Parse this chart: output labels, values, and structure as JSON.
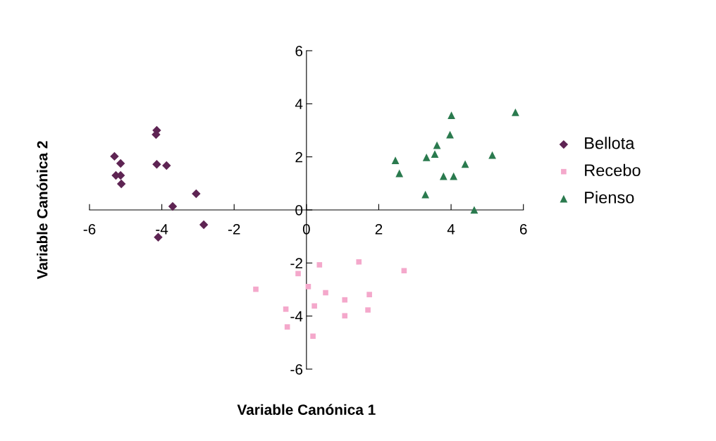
{
  "chart_data": {
    "type": "scatter",
    "xlabel": "Variable Canónica 1",
    "ylabel": "Variable Canónica 2",
    "xlim": [
      -6,
      6
    ],
    "ylim": [
      -6,
      6
    ],
    "xticks": [
      -6,
      -4,
      -2,
      0,
      2,
      4,
      6
    ],
    "yticks": [
      -6,
      -4,
      -2,
      0,
      2,
      4,
      6
    ],
    "grid": false,
    "legend": "right",
    "series": [
      {
        "name": "Bellota",
        "color": "#5e2453",
        "marker": "diamond",
        "x": [
          -5.31,
          -5.14,
          -5.27,
          -5.14,
          -5.12,
          -4.14,
          -4.16,
          -4.14,
          -3.87,
          -3.7,
          -3.05,
          -2.84,
          -4.1
        ],
        "values": [
          2.02,
          1.75,
          1.3,
          1.3,
          0.98,
          3.0,
          2.84,
          1.72,
          1.67,
          0.13,
          0.61,
          -0.56,
          -1.03
        ]
      },
      {
        "name": "Recebo",
        "color": "#f4a8cb",
        "marker": "square",
        "x": [
          0.36,
          1.45,
          2.7,
          -0.23,
          -1.4,
          0.05,
          0.53,
          1.74,
          1.06,
          0.22,
          -0.57,
          1.7,
          1.06,
          -0.53,
          0.18
        ],
        "values": [
          -2.07,
          -1.96,
          -2.29,
          -2.4,
          -2.99,
          -2.89,
          -3.12,
          -3.19,
          -3.39,
          -3.62,
          -3.74,
          -3.77,
          -3.99,
          -4.41,
          -4.76
        ]
      },
      {
        "name": "Pienso",
        "color": "#2a7a4e",
        "marker": "triangle",
        "x": [
          4.01,
          5.78,
          3.97,
          3.61,
          3.55,
          3.32,
          5.14,
          2.46,
          2.57,
          4.39,
          3.79,
          4.07,
          3.29,
          4.64
        ],
        "values": [
          3.57,
          3.68,
          2.84,
          2.44,
          2.11,
          1.98,
          2.07,
          1.87,
          1.38,
          1.73,
          1.27,
          1.27,
          0.58,
          0.0
        ]
      }
    ]
  }
}
